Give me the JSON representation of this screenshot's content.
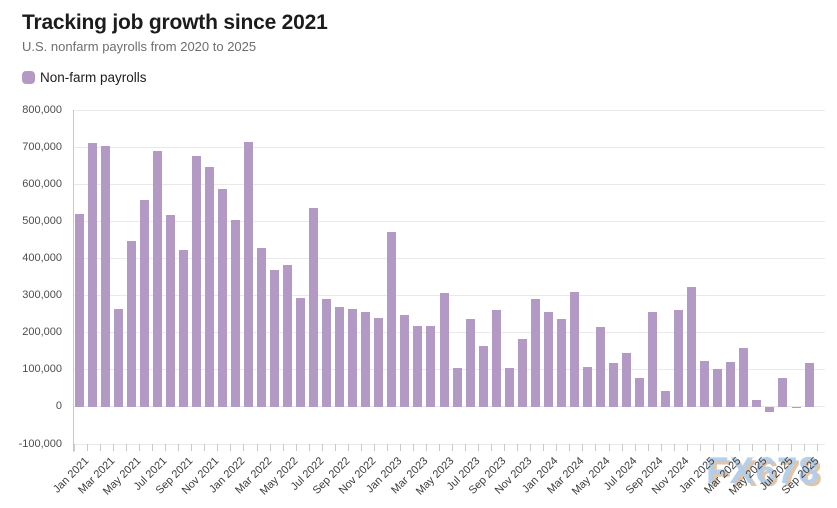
{
  "header": {
    "title": "Tracking job growth since 2021",
    "subtitle": "U.S. nonfarm payrolls from 2020 to 2025"
  },
  "legend": {
    "label": "Non-farm payrolls"
  },
  "watermark": "FX678",
  "chart_data": {
    "type": "bar",
    "title": "Tracking job growth since 2021",
    "subtitle": "U.S. nonfarm payrolls from 2020 to 2025",
    "xlabel": "",
    "ylabel": "",
    "ylim": [
      -100000,
      800000
    ],
    "y_ticks": [
      800000,
      700000,
      600000,
      500000,
      400000,
      300000,
      200000,
      100000,
      0,
      -100000
    ],
    "grid": "horizontal",
    "legend_position": "top-left",
    "bar_color": "#b29ac4",
    "x_tick_label_every": 2,
    "categories": [
      "Jan 2021",
      "Feb 2021",
      "Mar 2021",
      "Apr 2021",
      "May 2021",
      "Jun 2021",
      "Jul 2021",
      "Aug 2021",
      "Sep 2021",
      "Oct 2021",
      "Nov 2021",
      "Dec 2021",
      "Jan 2022",
      "Feb 2022",
      "Mar 2022",
      "Apr 2022",
      "May 2022",
      "Jun 2022",
      "Jul 2022",
      "Aug 2022",
      "Sep 2022",
      "Oct 2022",
      "Nov 2022",
      "Dec 2022",
      "Jan 2023",
      "Feb 2023",
      "Mar 2023",
      "Apr 2023",
      "May 2023",
      "Jun 2023",
      "Jul 2023",
      "Aug 2023",
      "Sep 2023",
      "Oct 2023",
      "Nov 2023",
      "Dec 2023",
      "Jan 2024",
      "Feb 2024",
      "Mar 2024",
      "Apr 2024",
      "May 2024",
      "Jun 2024",
      "Jul 2024",
      "Aug 2024",
      "Sep 2024",
      "Oct 2024",
      "Nov 2024",
      "Dec 2024",
      "Jan 2025",
      "Feb 2025",
      "Mar 2025",
      "Apr 2025",
      "May 2025",
      "Jun 2025",
      "Jul 2025",
      "Aug 2025",
      "Sep 2025"
    ],
    "series": [
      {
        "name": "Non-farm payrolls",
        "values": [
          520000,
          710000,
          704000,
          263000,
          447000,
          557000,
          689000,
          517000,
          424000,
          677000,
          647000,
          588000,
          504000,
          714000,
          428000,
          368000,
          383000,
          293000,
          537000,
          292000,
          269000,
          263000,
          256000,
          239000,
          472000,
          248000,
          217000,
          217000,
          306000,
          105000,
          236000,
          165000,
          262000,
          105000,
          182000,
          290000,
          256000,
          236000,
          310000,
          108000,
          216000,
          118000,
          144000,
          78000,
          255000,
          44000,
          261000,
          323000,
          125000,
          102000,
          120000,
          158000,
          19000,
          -13000,
          79000,
          -4000,
          119000
        ]
      }
    ]
  }
}
